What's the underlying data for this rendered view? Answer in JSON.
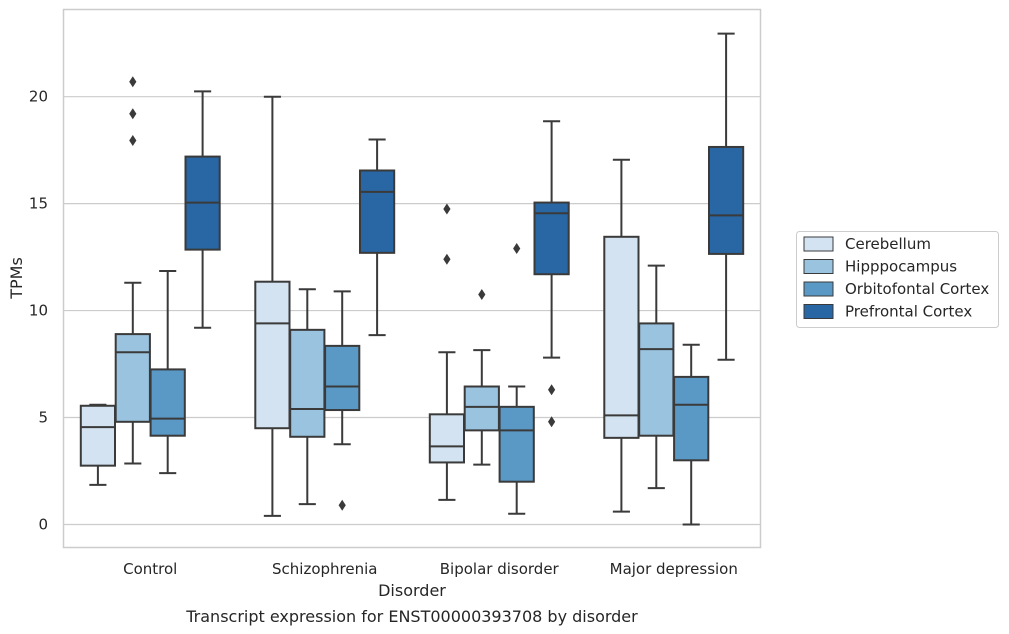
{
  "chart_data": {
    "type": "box",
    "xlabel": "Disorder",
    "ylabel": "TPMs",
    "caption": "Transcript expression for ENST00000393708 by disorder",
    "categories": [
      "Control",
      "Schizophrenia",
      "Bipolar disorder",
      "Major depression"
    ],
    "ylim": [
      -1.1,
      24.1
    ],
    "yticks": [
      0,
      5,
      10,
      15,
      20
    ],
    "grid": true,
    "legend_position": "right",
    "series": [
      {
        "name": "Cerebellum",
        "color": "#d4e3f1",
        "boxes": [
          {
            "whislo": 1.85,
            "q1": 2.75,
            "med": 4.55,
            "q3": 5.55,
            "whishi": 5.6,
            "fliers": []
          },
          {
            "whislo": 0.4,
            "q1": 4.5,
            "med": 9.4,
            "q3": 11.35,
            "whishi": 20.0,
            "fliers": []
          },
          {
            "whislo": 1.15,
            "q1": 2.9,
            "med": 3.65,
            "q3": 5.15,
            "whishi": 8.05,
            "fliers": [
              14.75,
              12.4
            ]
          },
          {
            "whislo": 0.6,
            "q1": 4.05,
            "med": 5.1,
            "q3": 13.45,
            "whishi": 17.05,
            "fliers": []
          }
        ]
      },
      {
        "name": "Hipppocampus",
        "color": "#9ac3df",
        "boxes": [
          {
            "whislo": 2.85,
            "q1": 4.8,
            "med": 8.05,
            "q3": 8.9,
            "whishi": 11.3,
            "fliers": [
              20.7,
              19.2,
              17.95
            ]
          },
          {
            "whislo": 0.95,
            "q1": 4.1,
            "med": 5.4,
            "q3": 9.1,
            "whishi": 11.0,
            "fliers": []
          },
          {
            "whislo": 2.8,
            "q1": 4.4,
            "med": 5.5,
            "q3": 6.45,
            "whishi": 8.15,
            "fliers": [
              10.75
            ]
          },
          {
            "whislo": 1.7,
            "q1": 4.15,
            "med": 8.2,
            "q3": 9.4,
            "whishi": 12.1,
            "fliers": []
          }
        ]
      },
      {
        "name": "Orbitofontal Cortex",
        "color": "#5a99c6",
        "boxes": [
          {
            "whislo": 2.4,
            "q1": 4.15,
            "med": 4.95,
            "q3": 7.25,
            "whishi": 11.85,
            "fliers": []
          },
          {
            "whislo": 3.75,
            "q1": 5.35,
            "med": 6.45,
            "q3": 8.35,
            "whishi": 10.9,
            "fliers": [
              0.9
            ]
          },
          {
            "whislo": 0.5,
            "q1": 2.0,
            "med": 4.4,
            "q3": 5.5,
            "whishi": 6.45,
            "fliers": [
              12.9
            ]
          },
          {
            "whislo": 0.0,
            "q1": 3.0,
            "med": 5.6,
            "q3": 6.9,
            "whishi": 8.4,
            "fliers": []
          }
        ]
      },
      {
        "name": "Prefrontal Cortex",
        "color": "#2866a4",
        "boxes": [
          {
            "whislo": 9.2,
            "q1": 12.85,
            "med": 15.05,
            "q3": 17.2,
            "whishi": 20.25,
            "fliers": []
          },
          {
            "whislo": 8.85,
            "q1": 12.7,
            "med": 15.55,
            "q3": 16.55,
            "whishi": 18.0,
            "fliers": []
          },
          {
            "whislo": 7.8,
            "q1": 11.7,
            "med": 14.55,
            "q3": 15.05,
            "whishi": 18.85,
            "fliers": [
              6.3,
              4.8
            ]
          },
          {
            "whislo": 7.7,
            "q1": 12.65,
            "med": 14.45,
            "q3": 17.65,
            "whishi": 22.95,
            "fliers": []
          }
        ]
      }
    ]
  }
}
